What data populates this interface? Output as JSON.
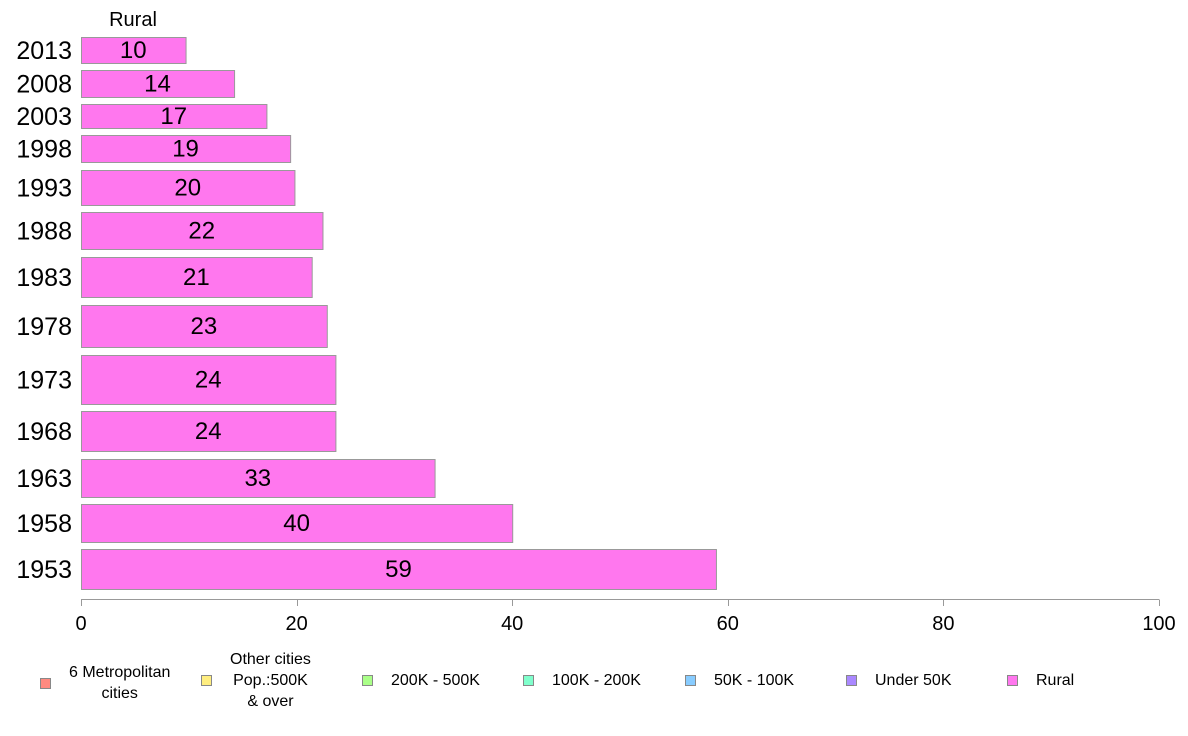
{
  "chart_data": {
    "type": "bar",
    "orientation": "horizontal",
    "title": "Rural",
    "categories": [
      "2013",
      "2008",
      "2003",
      "1998",
      "1993",
      "1988",
      "1983",
      "1978",
      "1973",
      "1968",
      "1963",
      "1958",
      "1953"
    ],
    "series": [
      {
        "name": "Rural",
        "values": [
          10,
          14,
          17,
          19,
          20,
          22,
          21,
          23,
          24,
          24,
          33,
          40,
          59
        ],
        "exact": [
          9.7,
          14.2,
          17.2,
          19.4,
          19.8,
          22.4,
          21.4,
          22.8,
          23.6,
          23.6,
          32.8,
          40.0,
          58.9
        ],
        "color": "#ff77ee"
      }
    ],
    "data_labels": [
      "10",
      "14",
      "17",
      "19",
      "20",
      "22",
      "21",
      "23",
      "24",
      "24",
      "33",
      "40",
      "59"
    ],
    "xlim": [
      0,
      100
    ],
    "xticks": [
      0,
      20,
      40,
      60,
      80,
      100
    ],
    "xtick_labels": [
      "0",
      "20",
      "40",
      "60",
      "80",
      "100"
    ],
    "grid": false,
    "legend_position": "bottom"
  },
  "legend": {
    "items": [
      {
        "label": "6 Metropolitan\ncities",
        "color": "#ff8a80"
      },
      {
        "label": "Other cities\nPop.:500K\n& over",
        "color": "#ffee80"
      },
      {
        "label": "200K - 500K",
        "color": "#aaff88"
      },
      {
        "label": "100K - 200K",
        "color": "#80ffcc"
      },
      {
        "label": "50K - 100K",
        "color": "#88ccff"
      },
      {
        "label": "Under 50K",
        "color": "#aa88ff"
      },
      {
        "label": "Rural",
        "color": "#ff77ee"
      }
    ]
  }
}
